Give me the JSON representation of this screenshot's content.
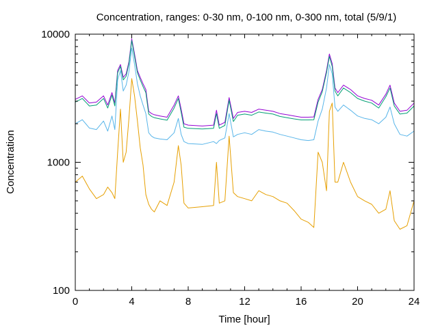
{
  "chart_data": {
    "type": "line",
    "title": "Concentration, ranges: 0-30 nm, 0-100 nm, 0-300 nm, total (5/9/1)",
    "xlabel": "Time [hour]",
    "ylabel": "Concentration",
    "xlim": [
      0,
      24
    ],
    "ylim": [
      100,
      10000
    ],
    "yscale": "log",
    "grid": false,
    "legend": "none",
    "xticks": [
      0,
      4,
      8,
      12,
      16,
      20,
      24
    ],
    "xtick_labels": [
      "0",
      "4",
      "8",
      "12",
      "16",
      "20",
      "24"
    ],
    "yticks": [
      100,
      1000,
      10000
    ],
    "ytick_labels": [
      "100",
      "1000",
      "10000"
    ],
    "x": [
      0,
      0.5,
      1,
      1.5,
      2,
      2.3,
      2.6,
      2.8,
      3,
      3.2,
      3.4,
      3.6,
      3.8,
      4,
      4.2,
      4.4,
      4.6,
      4.8,
      5,
      5.2,
      5.4,
      5.6,
      6,
      6.5,
      7,
      7.3,
      7.5,
      7.7,
      8,
      9,
      9.8,
      10,
      10.2,
      10.6,
      10.9,
      11.2,
      11.5,
      12,
      12.5,
      13,
      13.5,
      14,
      14.5,
      15,
      15.5,
      16,
      16.5,
      16.9,
      17.2,
      17.5,
      17.8,
      18,
      18.2,
      18.4,
      18.6,
      19,
      19.5,
      20,
      20.5,
      21,
      21.5,
      22,
      22.3,
      22.6,
      23,
      23.5,
      24
    ],
    "series": [
      {
        "color": "#9400d3",
        "values": [
          3100,
          3300,
          2900,
          2950,
          3300,
          2800,
          3500,
          2900,
          5200,
          5800,
          4600,
          4900,
          6100,
          9200,
          7000,
          5200,
          4600,
          4100,
          3700,
          2500,
          2400,
          2350,
          2300,
          2250,
          2800,
          3300,
          2600,
          2000,
          1950,
          1920,
          1950,
          2550,
          1950,
          2050,
          3200,
          2200,
          2450,
          2500,
          2450,
          2600,
          2550,
          2500,
          2400,
          2350,
          2300,
          2250,
          2250,
          2260,
          3100,
          3700,
          5200,
          7000,
          5900,
          3800,
          3500,
          4000,
          3700,
          3300,
          3150,
          3050,
          2800,
          3400,
          4000,
          2900,
          2500,
          2550,
          2900
        ]
      },
      {
        "color": "#009e73",
        "values": [
          2950,
          3150,
          2750,
          2800,
          3150,
          2650,
          3350,
          2750,
          5000,
          5600,
          4400,
          4700,
          5900,
          8900,
          6700,
          5000,
          4400,
          3900,
          3500,
          2380,
          2280,
          2230,
          2180,
          2130,
          2650,
          3150,
          2450,
          1880,
          1840,
          1820,
          1840,
          2400,
          1840,
          1940,
          3050,
          2080,
          2330,
          2380,
          2330,
          2470,
          2420,
          2380,
          2280,
          2230,
          2180,
          2140,
          2140,
          2150,
          2950,
          3550,
          5000,
          6700,
          5600,
          3600,
          3300,
          3800,
          3500,
          3150,
          3000,
          2900,
          2650,
          3250,
          3800,
          2750,
          2380,
          2420,
          2750
        ]
      },
      {
        "color": "#56b4e9",
        "values": [
          2000,
          2150,
          1850,
          1800,
          2100,
          1750,
          2300,
          1800,
          4400,
          5200,
          3600,
          4000,
          5100,
          7800,
          5800,
          4100,
          3300,
          2800,
          2400,
          1700,
          1600,
          1550,
          1520,
          1500,
          1700,
          2200,
          1650,
          1450,
          1400,
          1380,
          1450,
          1400,
          1480,
          1550,
          2400,
          1580,
          1650,
          1700,
          1650,
          1800,
          1750,
          1720,
          1650,
          1600,
          1550,
          1500,
          1480,
          1500,
          2100,
          2600,
          3800,
          5800,
          4900,
          2700,
          2500,
          2800,
          2550,
          2300,
          2200,
          2150,
          2000,
          2250,
          2700,
          2000,
          1650,
          1600,
          1750
        ]
      },
      {
        "color": "#e69f00",
        "values": [
          700,
          780,
          620,
          520,
          560,
          640,
          580,
          520,
          1200,
          2600,
          1000,
          1200,
          2200,
          4500,
          3300,
          2100,
          1300,
          950,
          560,
          470,
          430,
          410,
          500,
          460,
          700,
          1350,
          950,
          480,
          440,
          450,
          460,
          1000,
          480,
          500,
          1600,
          580,
          540,
          520,
          500,
          600,
          560,
          540,
          500,
          480,
          420,
          360,
          340,
          310,
          1200,
          1000,
          600,
          2500,
          2900,
          700,
          700,
          1000,
          700,
          540,
          500,
          470,
          400,
          430,
          600,
          350,
          300,
          320,
          500
        ]
      }
    ]
  }
}
